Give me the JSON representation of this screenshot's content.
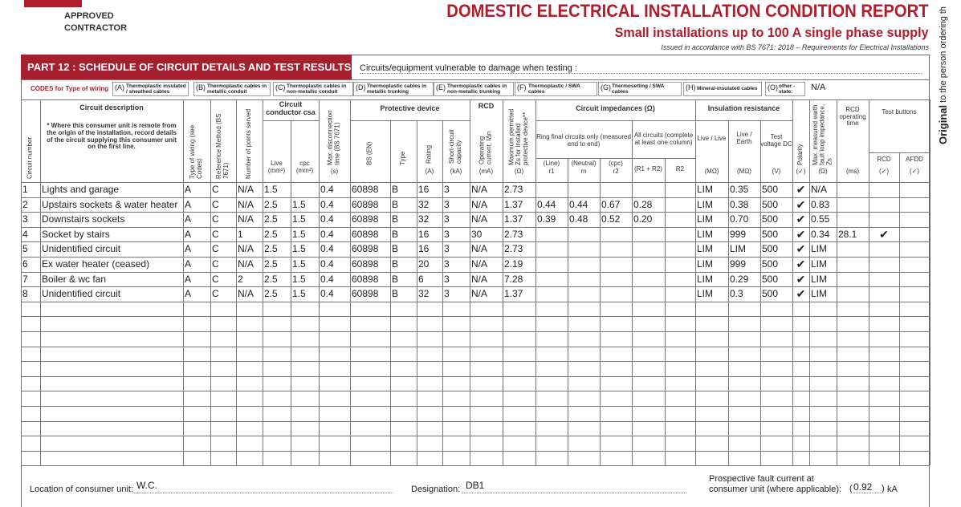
{
  "header": {
    "logo_line1": "APPROVED",
    "logo_line2": "CONTRACTOR",
    "title": "DOMESTIC ELECTRICAL INSTALLATION CONDITION REPORT",
    "subtitle": "Small installations up to 100 A single phase supply",
    "issued": "Issued in accordance with BS 7671: 2018 – Requirements for Electrical Installations",
    "side_bold": "Original",
    "side_rest": "to the person ordering th"
  },
  "part": {
    "title": "PART 12 : SCHEDULE OF CIRCUIT DETAILS AND TEST RESULTS",
    "vulnerable": "Circuits/equipment vulnerable to damage when testing :"
  },
  "codes": {
    "label": "CODES for Type of wiring",
    "items": [
      {
        "code": "(A)",
        "text": "Thermoplastic insulated / sheathed cables"
      },
      {
        "code": "(B)",
        "text": "Thermoplastic cables in metallic conduit"
      },
      {
        "code": "(C)",
        "text": "Thermoplastic cables in non-metallic conduit"
      },
      {
        "code": "(D)",
        "text": "Thermoplastic cables in metallic trunking"
      },
      {
        "code": "(E)",
        "text": "Thermoplastic cables in non-metallic trunking"
      },
      {
        "code": "(F)",
        "text": "Thermoplastic / SWA cables"
      },
      {
        "code": "(G)",
        "text": "Thermosetting / SWA cables"
      },
      {
        "code": "(H)",
        "text": "Mineral-insulated cables"
      },
      {
        "code": "(O)",
        "text": "other - state:"
      }
    ],
    "other_value": "N/A"
  },
  "table": {
    "headers": {
      "circuit_number": "Circuit number",
      "description": "Circuit description",
      "description_note": "* Where this consumer unit is remote from the origin of the installation, record details of the circuit supplying this consumer unit on the first line.",
      "type_of_wiring": "Type of wiring (see Codes)",
      "reference_method": "Reference Method (BS 7671)",
      "points": "Number of points served",
      "conductor": "Circuit conductor csa",
      "live": "Live",
      "live_unit": "(mm²)",
      "cpc": "cpc",
      "cpc_unit": "(mm²)",
      "max_disc": "Max. disconnection time (BS 7671)",
      "max_disc_unit": "(s)",
      "protective": "Protective device",
      "bs_en": "BS (EN)",
      "type": "Type",
      "rating": "Rating",
      "rating_unit": "(A)",
      "short_circuit": "Short-circuit capacity",
      "sc_unit": "(kA)",
      "rcd": "RCD",
      "rcd_current": "Operating current, IΔn",
      "rcd_unit": "(mA)",
      "max_zs": "Maximum permitted Zs for installed protective device**",
      "zs_unit": "(Ω)",
      "impedances": "Circuit impedances (Ω)",
      "ring": "Ring final circuits only (measured end to end)",
      "all": "All circuits (complete at least one column)",
      "line": "(Line)",
      "r1": "r1",
      "neutral": "(Neutral)",
      "rn": "rn",
      "cpc2": "(cpc)",
      "r2": "r2",
      "r1r2": "(R1 + R2)",
      "R2": "R2",
      "insulation": "Insulation resistance",
      "ll": "Live / Live",
      "le": "Live / Earth",
      "tv": "Test voltage DC",
      "ll_unit": "(MΩ)",
      "le_unit": "(MΩ)",
      "tv_unit": "(V)",
      "polarity": "Polarity",
      "pol_unit": "(✓)",
      "measured_zs": "Max. measured earth fault loop impedance, Zs",
      "mzs_unit": "(Ω)",
      "rcd_time": "RCD operating time",
      "time_unit": "(ms)",
      "test_buttons": "Test buttons",
      "rcd_btn": "RCD",
      "afdd": "AFDD",
      "btn_unit1": "(✓)",
      "btn_unit2": "(✓)"
    },
    "rows": [
      [
        "1",
        "Lights and garage",
        "A",
        "C",
        "N/A",
        "1.5",
        null,
        "0.4",
        "60898",
        "B",
        "16",
        "3",
        "N/A",
        "2.73",
        null,
        null,
        null,
        null,
        null,
        "LIM",
        "0.35",
        "500",
        "✔",
        "N/A",
        null,
        null,
        null
      ],
      [
        "2",
        "Upstairs sockets & water heater",
        "A",
        "C",
        "N/A",
        "2.5",
        "1.5",
        "0.4",
        "60898",
        "B",
        "32",
        "3",
        "N/A",
        "1.37",
        "0.44",
        "0.44",
        "0.67",
        "0.28",
        null,
        "LIM",
        "0.38",
        "500",
        "✔",
        "0.83",
        null,
        null,
        null
      ],
      [
        "3",
        "Downstairs sockets",
        "A",
        "C",
        "N/A",
        "2.5",
        "1.5",
        "0.4",
        "60898",
        "B",
        "32",
        "3",
        "N/A",
        "1.37",
        "0.39",
        "0.48",
        "0.52",
        "0.20",
        null,
        "LIM",
        "0.70",
        "500",
        "✔",
        "0.55",
        null,
        null,
        null
      ],
      [
        "4",
        "Socket by stairs",
        "A",
        "C",
        "1",
        "2.5",
        "1.5",
        "0.4",
        "60898",
        "B",
        "16",
        "3",
        "30",
        "2.73",
        null,
        null,
        null,
        null,
        null,
        "LIM",
        "999",
        "500",
        "✔",
        "0.34",
        "28.1",
        "✔",
        null
      ],
      [
        "5",
        "Unidentified circuit",
        "A",
        "C",
        "N/A",
        "2.5",
        "1.5",
        "0.4",
        "60898",
        "B",
        "16",
        "3",
        "N/A",
        "2.73",
        null,
        null,
        null,
        null,
        null,
        "LIM",
        "LIM",
        "500",
        "✔",
        "LIM",
        null,
        null,
        null
      ],
      [
        "6",
        "Ex water heater (ceased)",
        "A",
        "C",
        "N/A",
        "2.5",
        "1.5",
        "0.4",
        "60898",
        "B",
        "20",
        "3",
        "N/A",
        "2.19",
        null,
        null,
        null,
        null,
        null,
        "LIM",
        "999",
        "500",
        "✔",
        "LIM",
        null,
        null,
        null
      ],
      [
        "7",
        "Boiler & wc fan",
        "A",
        "C",
        "2",
        "2.5",
        "1.5",
        "0.4",
        "60898",
        "B",
        "6",
        "3",
        "N/A",
        "7.28",
        null,
        null,
        null,
        null,
        null,
        "LIM",
        "0.29",
        "500",
        "✔",
        "LIM",
        null,
        null,
        null
      ],
      [
        "8",
        "Unidentified circuit",
        "A",
        "C",
        "N/A",
        "2.5",
        "1.5",
        "0.4",
        "60898",
        "B",
        "32",
        "3",
        "N/A",
        "1.37",
        null,
        null,
        null,
        null,
        null,
        "LIM",
        "0.3",
        "500",
        "✔",
        "LIM",
        null,
        null,
        null
      ]
    ]
  },
  "footer": {
    "location_label": "Location of consumer unit:",
    "location": "W.C.",
    "designation_label": "Designation:",
    "designation": "DB1",
    "pfc_line1": "Prospective fault current at",
    "pfc_line2": "consumer unit (where applicable):",
    "bracket_open": "(",
    "pfc": "0.92",
    "bracket_close": ")",
    "unit": "kA"
  }
}
